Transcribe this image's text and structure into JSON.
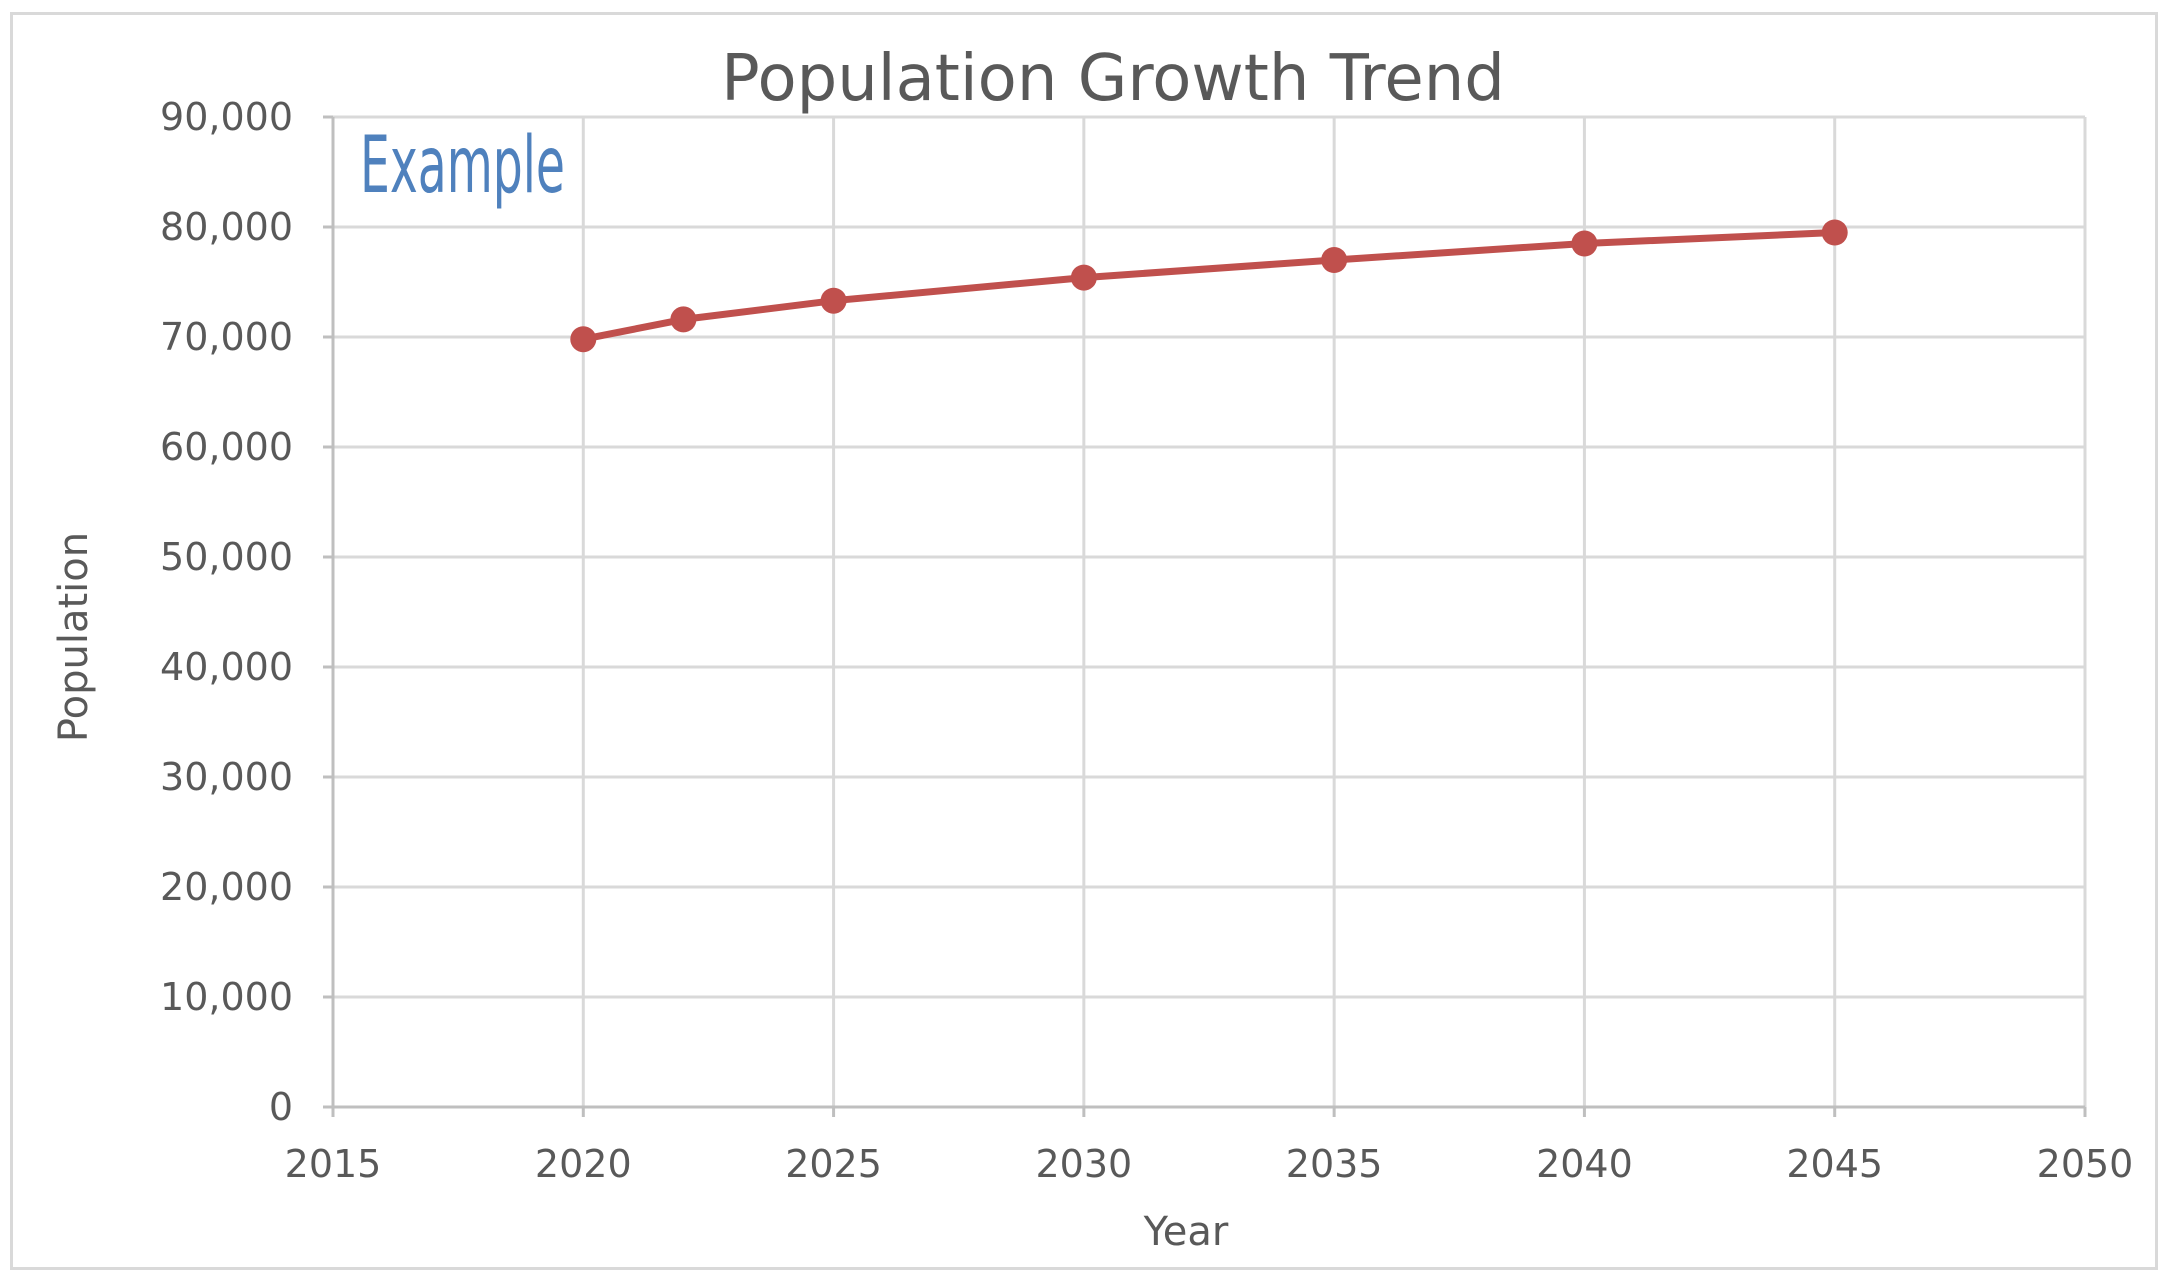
{
  "watermark": "Example",
  "colors": {
    "series": "#c0504d",
    "grid": "#d9d9d9",
    "text": "#595959",
    "watermark": "#4f81bd"
  },
  "chart_data": {
    "type": "line",
    "title": "Population Growth Trend",
    "xlabel": "Year",
    "ylabel": "Population",
    "xlim": [
      2015,
      2050
    ],
    "ylim": [
      0,
      90000
    ],
    "x_ticks": [
      "2015",
      "2020",
      "2025",
      "2030",
      "2035",
      "2040",
      "2045",
      "2050"
    ],
    "y_ticks": [
      "0",
      "10,000",
      "20,000",
      "30,000",
      "40,000",
      "50,000",
      "60,000",
      "70,000",
      "80,000",
      "90,000"
    ],
    "grid": true,
    "legend": "none",
    "series": [
      {
        "x": [
          2020,
          2022,
          2025,
          2030,
          2035,
          2040,
          2045
        ],
        "y": [
          69800,
          71600,
          73300,
          75400,
          77000,
          78500,
          79500
        ]
      }
    ]
  }
}
